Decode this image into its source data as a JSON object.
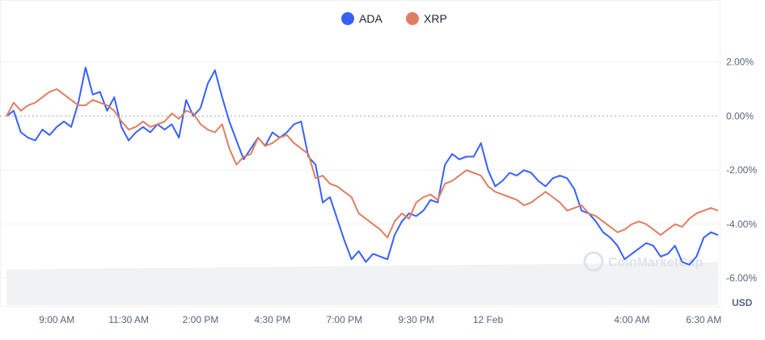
{
  "chart_data": {
    "type": "line",
    "title": "",
    "currency_label": "USD",
    "watermark": "CoinMarketCap",
    "legend_position": "top-center",
    "grid": true,
    "ylim": [
      -7.0,
      4.0
    ],
    "y_ticks": [
      {
        "value": 2,
        "label": "2.00%"
      },
      {
        "value": 0,
        "label": "0.00%"
      },
      {
        "value": -2,
        "label": "-2.00%"
      },
      {
        "value": -4,
        "label": "-4.00%"
      },
      {
        "value": -6,
        "label": "-6.00%"
      }
    ],
    "x_ticks": [
      "9:00 AM",
      "11:30 AM",
      "2:00 PM",
      "4:30 PM",
      "7:00 PM",
      "9:30 PM",
      "12 Feb",
      "4:00 AM",
      "6:30 AM"
    ],
    "x_tick_index": [
      7,
      17,
      27,
      37,
      47,
      57,
      67,
      87,
      97
    ],
    "x_count": 100,
    "volume_range": [
      0.4,
      0.7
    ],
    "series": [
      {
        "name": "ADA",
        "color": "#3861fb",
        "values": [
          0.0,
          0.2,
          -0.6,
          -0.8,
          -0.9,
          -0.5,
          -0.7,
          -0.4,
          -0.2,
          -0.4,
          0.5,
          1.8,
          0.8,
          0.9,
          0.2,
          0.7,
          -0.4,
          -0.9,
          -0.6,
          -0.4,
          -0.6,
          -0.3,
          -0.5,
          -0.3,
          -0.8,
          0.6,
          0.0,
          0.3,
          1.2,
          1.7,
          0.7,
          -0.2,
          -0.9,
          -1.6,
          -1.2,
          -0.8,
          -1.1,
          -0.6,
          -0.8,
          -0.6,
          -0.3,
          -0.2,
          -1.5,
          -1.8,
          -3.2,
          -3.0,
          -3.8,
          -4.6,
          -5.3,
          -5.0,
          -5.4,
          -5.1,
          -5.2,
          -5.3,
          -4.4,
          -3.9,
          -3.6,
          -3.7,
          -3.5,
          -3.1,
          -3.2,
          -1.8,
          -1.4,
          -1.6,
          -1.5,
          -1.5,
          -1.0,
          -2.0,
          -2.6,
          -2.4,
          -2.1,
          -2.2,
          -2.0,
          -2.1,
          -2.4,
          -2.6,
          -2.3,
          -2.2,
          -2.3,
          -2.7,
          -3.5,
          -3.6,
          -3.9,
          -4.3,
          -4.5,
          -4.8,
          -5.3,
          -5.1,
          -4.9,
          -4.7,
          -4.8,
          -5.2,
          -5.1,
          -4.8,
          -5.4,
          -5.5,
          -5.2,
          -4.5,
          -4.3,
          -4.4
        ]
      },
      {
        "name": "XRP",
        "color": "#e07e61",
        "values": [
          0.0,
          0.5,
          0.2,
          0.4,
          0.5,
          0.7,
          0.9,
          1.0,
          0.8,
          0.6,
          0.4,
          0.4,
          0.6,
          0.5,
          0.4,
          0.2,
          -0.2,
          -0.5,
          -0.4,
          -0.2,
          -0.4,
          -0.3,
          -0.2,
          0.1,
          -0.1,
          0.2,
          0.1,
          -0.3,
          -0.5,
          -0.6,
          -0.3,
          -1.2,
          -1.8,
          -1.5,
          -1.4,
          -0.8,
          -1.1,
          -1.0,
          -0.8,
          -0.7,
          -1.0,
          -1.2,
          -1.4,
          -2.3,
          -2.2,
          -2.5,
          -2.6,
          -2.8,
          -3.0,
          -3.6,
          -3.8,
          -4.0,
          -4.2,
          -4.5,
          -3.9,
          -3.6,
          -3.8,
          -3.2,
          -3.0,
          -2.9,
          -3.1,
          -2.5,
          -2.4,
          -2.2,
          -2.0,
          -2.1,
          -2.2,
          -2.6,
          -2.8,
          -2.9,
          -3.0,
          -3.1,
          -3.3,
          -3.2,
          -3.0,
          -2.8,
          -3.0,
          -3.2,
          -3.5,
          -3.4,
          -3.3,
          -3.6,
          -3.7,
          -3.9,
          -4.1,
          -4.3,
          -4.2,
          -4.0,
          -3.9,
          -4.0,
          -4.2,
          -4.4,
          -4.2,
          -4.0,
          -4.1,
          -3.8,
          -3.6,
          -3.5,
          -3.4,
          -3.5
        ]
      }
    ]
  }
}
